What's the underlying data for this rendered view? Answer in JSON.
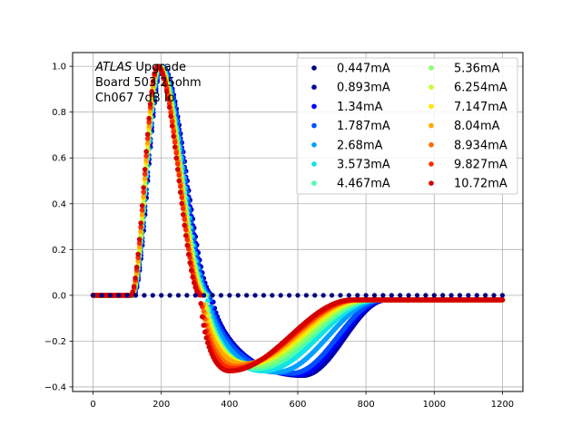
{
  "chart_data": {
    "type": "scatter",
    "title": "",
    "xlabel": "",
    "ylabel": "",
    "xlim": [
      -60,
      1260
    ],
    "ylim": [
      -0.42,
      1.06
    ],
    "grid": true,
    "x_ticks": [
      0,
      200,
      400,
      600,
      800,
      1000,
      1200
    ],
    "y_ticks": [
      -0.4,
      -0.2,
      0.0,
      0.2,
      0.4,
      0.6,
      0.8,
      1.0
    ],
    "x_tick_labels": [
      "0",
      "200",
      "400",
      "600",
      "800",
      "1000",
      "1200"
    ],
    "y_tick_labels": [
      "−0.4",
      "−0.2",
      "0.0",
      "0.2",
      "0.4",
      "0.6",
      "0.8",
      "1.0"
    ],
    "annotation": {
      "line1_italic": "ATLAS",
      "line1_rest": " Upgrade",
      "line2": " Board 503 25ohm",
      "line3": " Ch067 7dB lo"
    },
    "legend_location": "upper-right",
    "flat_series": {
      "name": "0.447mA",
      "color": "#00007f",
      "y": 0.0,
      "x_start": 0,
      "x_end": 1200,
      "x_step": 25
    },
    "series": [
      {
        "name": "0.447mA",
        "color": "#00007f",
        "flat": true
      },
      {
        "name": "0.893mA",
        "color": "#0000a8",
        "t0": 118,
        "peak_t": 202,
        "peak": 1.0,
        "zero_t": 350,
        "min_t": 615,
        "min": -0.35,
        "tail_t": 860,
        "tail": -0.02
      },
      {
        "name": "1.34mA",
        "color": "#0000ff",
        "t0": 117,
        "peak_t": 201,
        "peak": 1.0,
        "zero_t": 346,
        "min_t": 600,
        "min": -0.345,
        "tail_t": 855,
        "tail": -0.02
      },
      {
        "name": "1.787mA",
        "color": "#0050ff",
        "t0": 116,
        "peak_t": 200,
        "peak": 1.0,
        "zero_t": 343,
        "min_t": 585,
        "min": -0.34,
        "tail_t": 850,
        "tail": -0.02
      },
      {
        "name": "2.68mA",
        "color": "#00a0ff",
        "t0": 115,
        "peak_t": 198,
        "peak": 1.0,
        "zero_t": 340,
        "min_t": 540,
        "min": -0.335,
        "tail_t": 840,
        "tail": -0.02
      },
      {
        "name": "3.573mA",
        "color": "#10e4e7",
        "t0": 114,
        "peak_t": 196,
        "peak": 1.0,
        "zero_t": 335,
        "min_t": 500,
        "min": -0.33,
        "tail_t": 830,
        "tail": -0.02
      },
      {
        "name": "4.467mA",
        "color": "#4dffaa",
        "t0": 114,
        "peak_t": 195,
        "peak": 1.0,
        "zero_t": 332,
        "min_t": 480,
        "min": -0.32,
        "tail_t": 820,
        "tail": -0.02
      },
      {
        "name": "5.36mA",
        "color": "#88ff6f",
        "t0": 113,
        "peak_t": 194,
        "peak": 1.0,
        "zero_t": 330,
        "min_t": 470,
        "min": -0.31,
        "tail_t": 810,
        "tail": -0.02
      },
      {
        "name": "6.254mA",
        "color": "#c4ff33",
        "t0": 113,
        "peak_t": 193,
        "peak": 1.0,
        "zero_t": 328,
        "min_t": 460,
        "min": -0.3,
        "tail_t": 800,
        "tail": -0.02
      },
      {
        "name": "7.147mA",
        "color": "#ffe500",
        "t0": 112,
        "peak_t": 192,
        "peak": 1.0,
        "zero_t": 325,
        "min_t": 450,
        "min": -0.3,
        "tail_t": 790,
        "tail": -0.02
      },
      {
        "name": "8.04mA",
        "color": "#ffa700",
        "t0": 112,
        "peak_t": 191,
        "peak": 1.0,
        "zero_t": 322,
        "min_t": 440,
        "min": -0.3,
        "tail_t": 780,
        "tail": -0.02
      },
      {
        "name": "8.934mA",
        "color": "#ff6800",
        "t0": 111,
        "peak_t": 190,
        "peak": 1.0,
        "zero_t": 320,
        "min_t": 420,
        "min": -0.31,
        "tail_t": 775,
        "tail": -0.02
      },
      {
        "name": "9.827mA",
        "color": "#ff2a00",
        "t0": 111,
        "peak_t": 190,
        "peak": 1.0,
        "zero_t": 318,
        "min_t": 410,
        "min": -0.32,
        "tail_t": 770,
        "tail": -0.02
      },
      {
        "name": "10.72mA",
        "color": "#d40000",
        "t0": 110,
        "peak_t": 189,
        "peak": 1.0,
        "zero_t": 315,
        "min_t": 400,
        "min": -0.33,
        "tail_t": 760,
        "tail": -0.02
      }
    ]
  }
}
